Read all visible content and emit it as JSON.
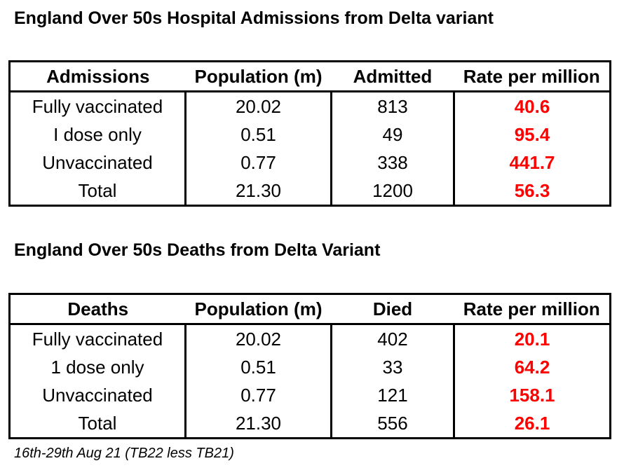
{
  "admissions": {
    "title": "England Over 50s Hospital Admissions from Delta variant",
    "headers": [
      "Admissions",
      "Population (m)",
      "Admitted",
      "Rate per million"
    ],
    "rows": [
      {
        "label": "Fully vaccinated",
        "population": "20.02",
        "count": "813",
        "rate": "40.6"
      },
      {
        "label": "I dose only",
        "population": "0.51",
        "count": "49",
        "rate": "95.4"
      },
      {
        "label": "Unvaccinated",
        "population": "0.77",
        "count": "338",
        "rate": "441.7"
      },
      {
        "label": "Total",
        "population": "21.30",
        "count": "1200",
        "rate": "56.3"
      }
    ]
  },
  "deaths": {
    "title": "England Over 50s Deaths from Delta Variant",
    "headers": [
      "Deaths",
      "Population (m)",
      "Died",
      "Rate per million"
    ],
    "rows": [
      {
        "label": "Fully vaccinated",
        "population": "20.02",
        "count": "402",
        "rate": "20.1"
      },
      {
        "label": "1 dose only",
        "population": "0.51",
        "count": "33",
        "rate": "64.2"
      },
      {
        "label": "Unvaccinated",
        "population": "0.77",
        "count": "121",
        "rate": "158.1"
      },
      {
        "label": "Total",
        "population": "21.30",
        "count": "556",
        "rate": "26.1"
      }
    ]
  },
  "footnote": "16th-29th Aug 21 (TB22 less TB21)",
  "colors": {
    "rate_text": "#ff0000",
    "border": "#000000",
    "background": "#ffffff"
  }
}
